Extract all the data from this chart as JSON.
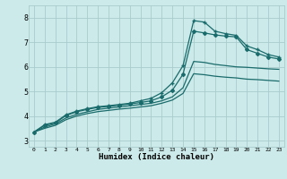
{
  "xlabel": "Humidex (Indice chaleur)",
  "xlim": [
    -0.5,
    23.5
  ],
  "ylim": [
    2.75,
    8.5
  ],
  "xticks": [
    0,
    1,
    2,
    3,
    4,
    5,
    6,
    7,
    8,
    9,
    10,
    11,
    12,
    13,
    14,
    15,
    16,
    17,
    18,
    19,
    20,
    21,
    22,
    23
  ],
  "yticks": [
    3,
    4,
    5,
    6,
    7,
    8
  ],
  "bg_color": "#cceaea",
  "grid_color": "#aacccc",
  "line_color": "#1a6b6b",
  "lines": [
    {
      "x": [
        0,
        1,
        2,
        3,
        4,
        5,
        6,
        7,
        8,
        9,
        10,
        11,
        12,
        13,
        14,
        15,
        16,
        17,
        18,
        19,
        20,
        21,
        22,
        23
      ],
      "y": [
        3.35,
        3.65,
        3.75,
        4.05,
        4.2,
        4.3,
        4.38,
        4.42,
        4.47,
        4.52,
        4.62,
        4.72,
        4.95,
        5.35,
        6.05,
        7.88,
        7.82,
        7.45,
        7.35,
        7.28,
        6.85,
        6.7,
        6.5,
        6.4
      ],
      "marker": "+",
      "markersize": 3.5,
      "linewidth": 0.9
    },
    {
      "x": [
        0,
        1,
        2,
        3,
        4,
        5,
        6,
        7,
        8,
        9,
        10,
        11,
        12,
        13,
        14,
        15,
        16,
        17,
        18,
        19,
        20,
        21,
        22,
        23
      ],
      "y": [
        3.35,
        3.62,
        3.72,
        4.02,
        4.17,
        4.27,
        4.35,
        4.39,
        4.44,
        4.49,
        4.55,
        4.62,
        4.78,
        5.05,
        5.7,
        7.45,
        7.38,
        7.3,
        7.25,
        7.22,
        6.7,
        6.55,
        6.4,
        6.32
      ],
      "marker": "D",
      "markersize": 2.0,
      "linewidth": 0.9
    },
    {
      "x": [
        0,
        1,
        2,
        3,
        4,
        5,
        6,
        7,
        8,
        9,
        10,
        11,
        12,
        13,
        14,
        15,
        16,
        17,
        18,
        19,
        20,
        21,
        22,
        23
      ],
      "y": [
        3.35,
        3.55,
        3.68,
        3.92,
        4.07,
        4.17,
        4.27,
        4.32,
        4.37,
        4.42,
        4.47,
        4.52,
        4.62,
        4.78,
        5.15,
        6.22,
        6.18,
        6.1,
        6.05,
        6.0,
        5.98,
        5.95,
        5.92,
        5.9
      ],
      "marker": null,
      "markersize": 0,
      "linewidth": 0.9
    },
    {
      "x": [
        0,
        1,
        2,
        3,
        4,
        5,
        6,
        7,
        8,
        9,
        10,
        11,
        12,
        13,
        14,
        15,
        16,
        17,
        18,
        19,
        20,
        21,
        22,
        23
      ],
      "y": [
        3.35,
        3.5,
        3.62,
        3.85,
        4.0,
        4.1,
        4.18,
        4.23,
        4.28,
        4.32,
        4.37,
        4.42,
        4.52,
        4.65,
        4.92,
        5.72,
        5.68,
        5.62,
        5.58,
        5.55,
        5.5,
        5.48,
        5.45,
        5.42
      ],
      "marker": null,
      "markersize": 0,
      "linewidth": 0.9
    }
  ]
}
